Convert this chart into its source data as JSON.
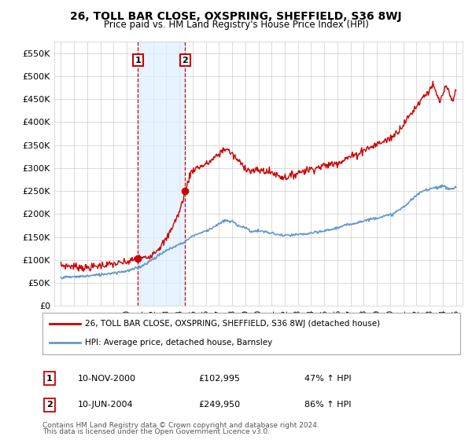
{
  "title": "26, TOLL BAR CLOSE, OXSPRING, SHEFFIELD, S36 8WJ",
  "subtitle": "Price paid vs. HM Land Registry's House Price Index (HPI)",
  "legend_line1": "26, TOLL BAR CLOSE, OXSPRING, SHEFFIELD, S36 8WJ (detached house)",
  "legend_line2": "HPI: Average price, detached house, Barnsley",
  "transaction1_date": "10-NOV-2000",
  "transaction1_price": "£102,995",
  "transaction1_hpi": "47% ↑ HPI",
  "transaction1_x": 2000.86,
  "transaction1_y": 102995,
  "transaction2_date": "10-JUN-2004",
  "transaction2_price": "£249,950",
  "transaction2_hpi": "86% ↑ HPI",
  "transaction2_x": 2004.44,
  "transaction2_y": 249950,
  "footnote1": "Contains HM Land Registry data © Crown copyright and database right 2024.",
  "footnote2": "This data is licensed under the Open Government Licence v3.0.",
  "red_color": "#cc0000",
  "blue_color": "#6699cc",
  "vline_color": "#cc0000",
  "shade_color": "#ddeeff",
  "box_color": "#cc0000",
  "grid_color": "#cccccc",
  "bg_color": "#ffffff",
  "ylim": [
    0,
    575000
  ],
  "yticks": [
    0,
    50000,
    100000,
    150000,
    200000,
    250000,
    300000,
    350000,
    400000,
    450000,
    500000,
    550000
  ],
  "xlim_start": 1994.5,
  "xlim_end": 2025.5,
  "hpi_keypoints": [
    [
      1995.0,
      62000
    ],
    [
      1996.0,
      63000
    ],
    [
      1997.0,
      65000
    ],
    [
      1998.0,
      68000
    ],
    [
      1999.0,
      72000
    ],
    [
      2000.0,
      76000
    ],
    [
      2001.0,
      85000
    ],
    [
      2002.0,
      102000
    ],
    [
      2003.0,
      120000
    ],
    [
      2004.0,
      134000
    ],
    [
      2004.44,
      140000
    ],
    [
      2005.0,
      152000
    ],
    [
      2006.0,
      163000
    ],
    [
      2007.0,
      178000
    ],
    [
      2007.5,
      185000
    ],
    [
      2008.0,
      183000
    ],
    [
      2008.5,
      175000
    ],
    [
      2009.0,
      170000
    ],
    [
      2009.5,
      162000
    ],
    [
      2010.0,
      163000
    ],
    [
      2011.0,
      158000
    ],
    [
      2012.0,
      153000
    ],
    [
      2013.0,
      155000
    ],
    [
      2014.0,
      158000
    ],
    [
      2015.0,
      163000
    ],
    [
      2016.0,
      170000
    ],
    [
      2017.0,
      178000
    ],
    [
      2018.0,
      185000
    ],
    [
      2019.0,
      192000
    ],
    [
      2020.0,
      198000
    ],
    [
      2021.0,
      215000
    ],
    [
      2022.0,
      240000
    ],
    [
      2022.5,
      250000
    ],
    [
      2023.0,
      255000
    ],
    [
      2023.5,
      258000
    ],
    [
      2024.0,
      260000
    ],
    [
      2024.5,
      255000
    ],
    [
      2025.0,
      258000
    ]
  ],
  "red_keypoints": [
    [
      1995.0,
      88000
    ],
    [
      1996.0,
      86000
    ],
    [
      1997.0,
      83000
    ],
    [
      1998.0,
      88000
    ],
    [
      1999.0,
      91000
    ],
    [
      2000.0,
      95000
    ],
    [
      2000.86,
      102995
    ],
    [
      2001.5,
      105000
    ],
    [
      2002.0,
      115000
    ],
    [
      2003.0,
      145000
    ],
    [
      2003.5,
      175000
    ],
    [
      2004.0,
      205000
    ],
    [
      2004.44,
      249950
    ],
    [
      2005.0,
      295000
    ],
    [
      2006.0,
      308000
    ],
    [
      2007.0,
      330000
    ],
    [
      2007.5,
      342000
    ],
    [
      2008.0,
      330000
    ],
    [
      2008.5,
      315000
    ],
    [
      2009.0,
      302000
    ],
    [
      2009.5,
      293000
    ],
    [
      2010.0,
      295000
    ],
    [
      2011.0,
      290000
    ],
    [
      2012.0,
      280000
    ],
    [
      2012.5,
      283000
    ],
    [
      2013.0,
      290000
    ],
    [
      2013.5,
      295000
    ],
    [
      2014.0,
      298000
    ],
    [
      2015.0,
      305000
    ],
    [
      2016.0,
      312000
    ],
    [
      2017.0,
      325000
    ],
    [
      2017.5,
      330000
    ],
    [
      2018.0,
      340000
    ],
    [
      2018.5,
      345000
    ],
    [
      2019.0,
      352000
    ],
    [
      2019.5,
      358000
    ],
    [
      2020.0,
      365000
    ],
    [
      2020.5,
      378000
    ],
    [
      2021.0,
      395000
    ],
    [
      2021.5,
      415000
    ],
    [
      2022.0,
      435000
    ],
    [
      2022.5,
      455000
    ],
    [
      2023.0,
      470000
    ],
    [
      2023.2,
      480000
    ],
    [
      2023.5,
      462000
    ],
    [
      2023.8,
      445000
    ],
    [
      2024.0,
      462000
    ],
    [
      2024.3,
      475000
    ],
    [
      2024.5,
      460000
    ],
    [
      2024.7,
      448000
    ],
    [
      2025.0,
      470000
    ]
  ]
}
